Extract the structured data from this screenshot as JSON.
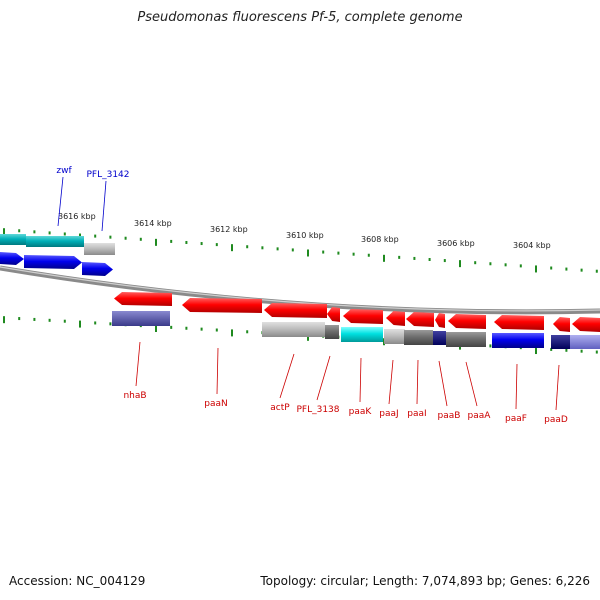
{
  "title": "Pseudomonas fluorescens Pf-5, complete genome",
  "footer": {
    "accession": "Accession: NC_004129",
    "topology": "Topology: circular; Length: 7,074,893 bp; Genes: 6,226"
  },
  "colors": {
    "tick": "#1f8a1f",
    "backbone": "#8a8a8a",
    "reverse_label": "#cc0000",
    "forward_label": "#0000cc"
  },
  "tick_labels": [
    "3616 kbp",
    "3614 kbp",
    "3612 kbp",
    "3610 kbp",
    "3608 kbp",
    "3606 kbp",
    "3604 kbp"
  ],
  "gene_labels_top": [
    "zwf",
    "PFL_3142"
  ],
  "gene_labels_bottom": [
    "nhaB",
    "paaN",
    "actP",
    "PFL_3138",
    "paaK",
    "paaJ",
    "paaI",
    "paaB",
    "paaA",
    "paaF",
    "paaD"
  ]
}
